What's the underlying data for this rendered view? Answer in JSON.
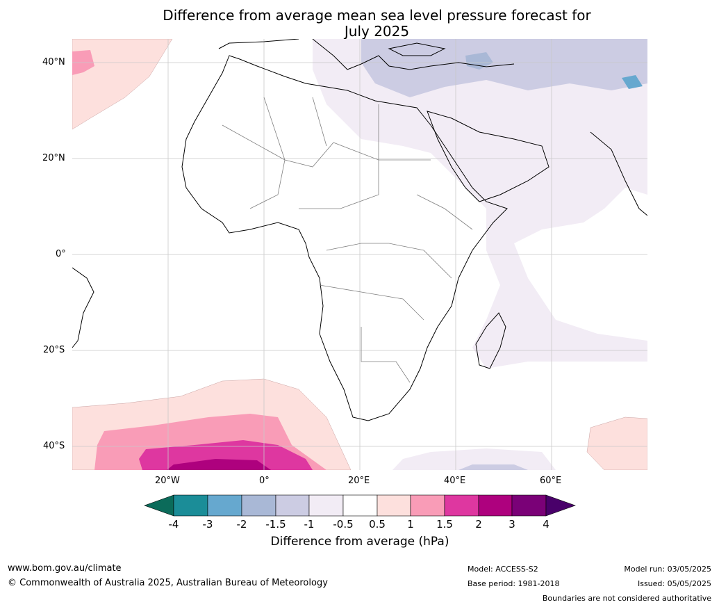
{
  "title": {
    "line1": "Difference from average mean sea level pressure forecast for",
    "line2": "July 2025"
  },
  "axes": {
    "lat_labels": [
      "40°N",
      "20°N",
      "0°",
      "20°S",
      "40°S"
    ],
    "lon_labels": [
      "20°W",
      "0°",
      "20°E",
      "40°E",
      "60°E"
    ]
  },
  "colorbar": {
    "title": "Difference from average (hPa)",
    "ticks": [
      "-4",
      "-3",
      "-2",
      "-1.5",
      "-1",
      "-0.5",
      "0.5",
      "1",
      "1.5",
      "2",
      "3",
      "4"
    ],
    "colors": [
      "#0b6b5a",
      "#1b8d98",
      "#66a8cf",
      "#a9b8d6",
      "#ccccE3",
      "#f2ecf5",
      "#ffffff",
      "#fde0dd",
      "#f99cb7",
      "#de37a0",
      "#ae017e",
      "#7a0177",
      "#49006a"
    ]
  },
  "footer": {
    "url": "www.bom.gov.au/climate",
    "copyright": "© Commonwealth of Australia 2025, Australian Bureau of Meteorology",
    "model": "Model: ACCESS-S2",
    "base_period": "Base period: 1981-2018",
    "model_run": "Model run: 03/05/2025",
    "issued": "Issued: 05/05/2025",
    "disclaimer": "Boundaries are not considered authoritative"
  }
}
